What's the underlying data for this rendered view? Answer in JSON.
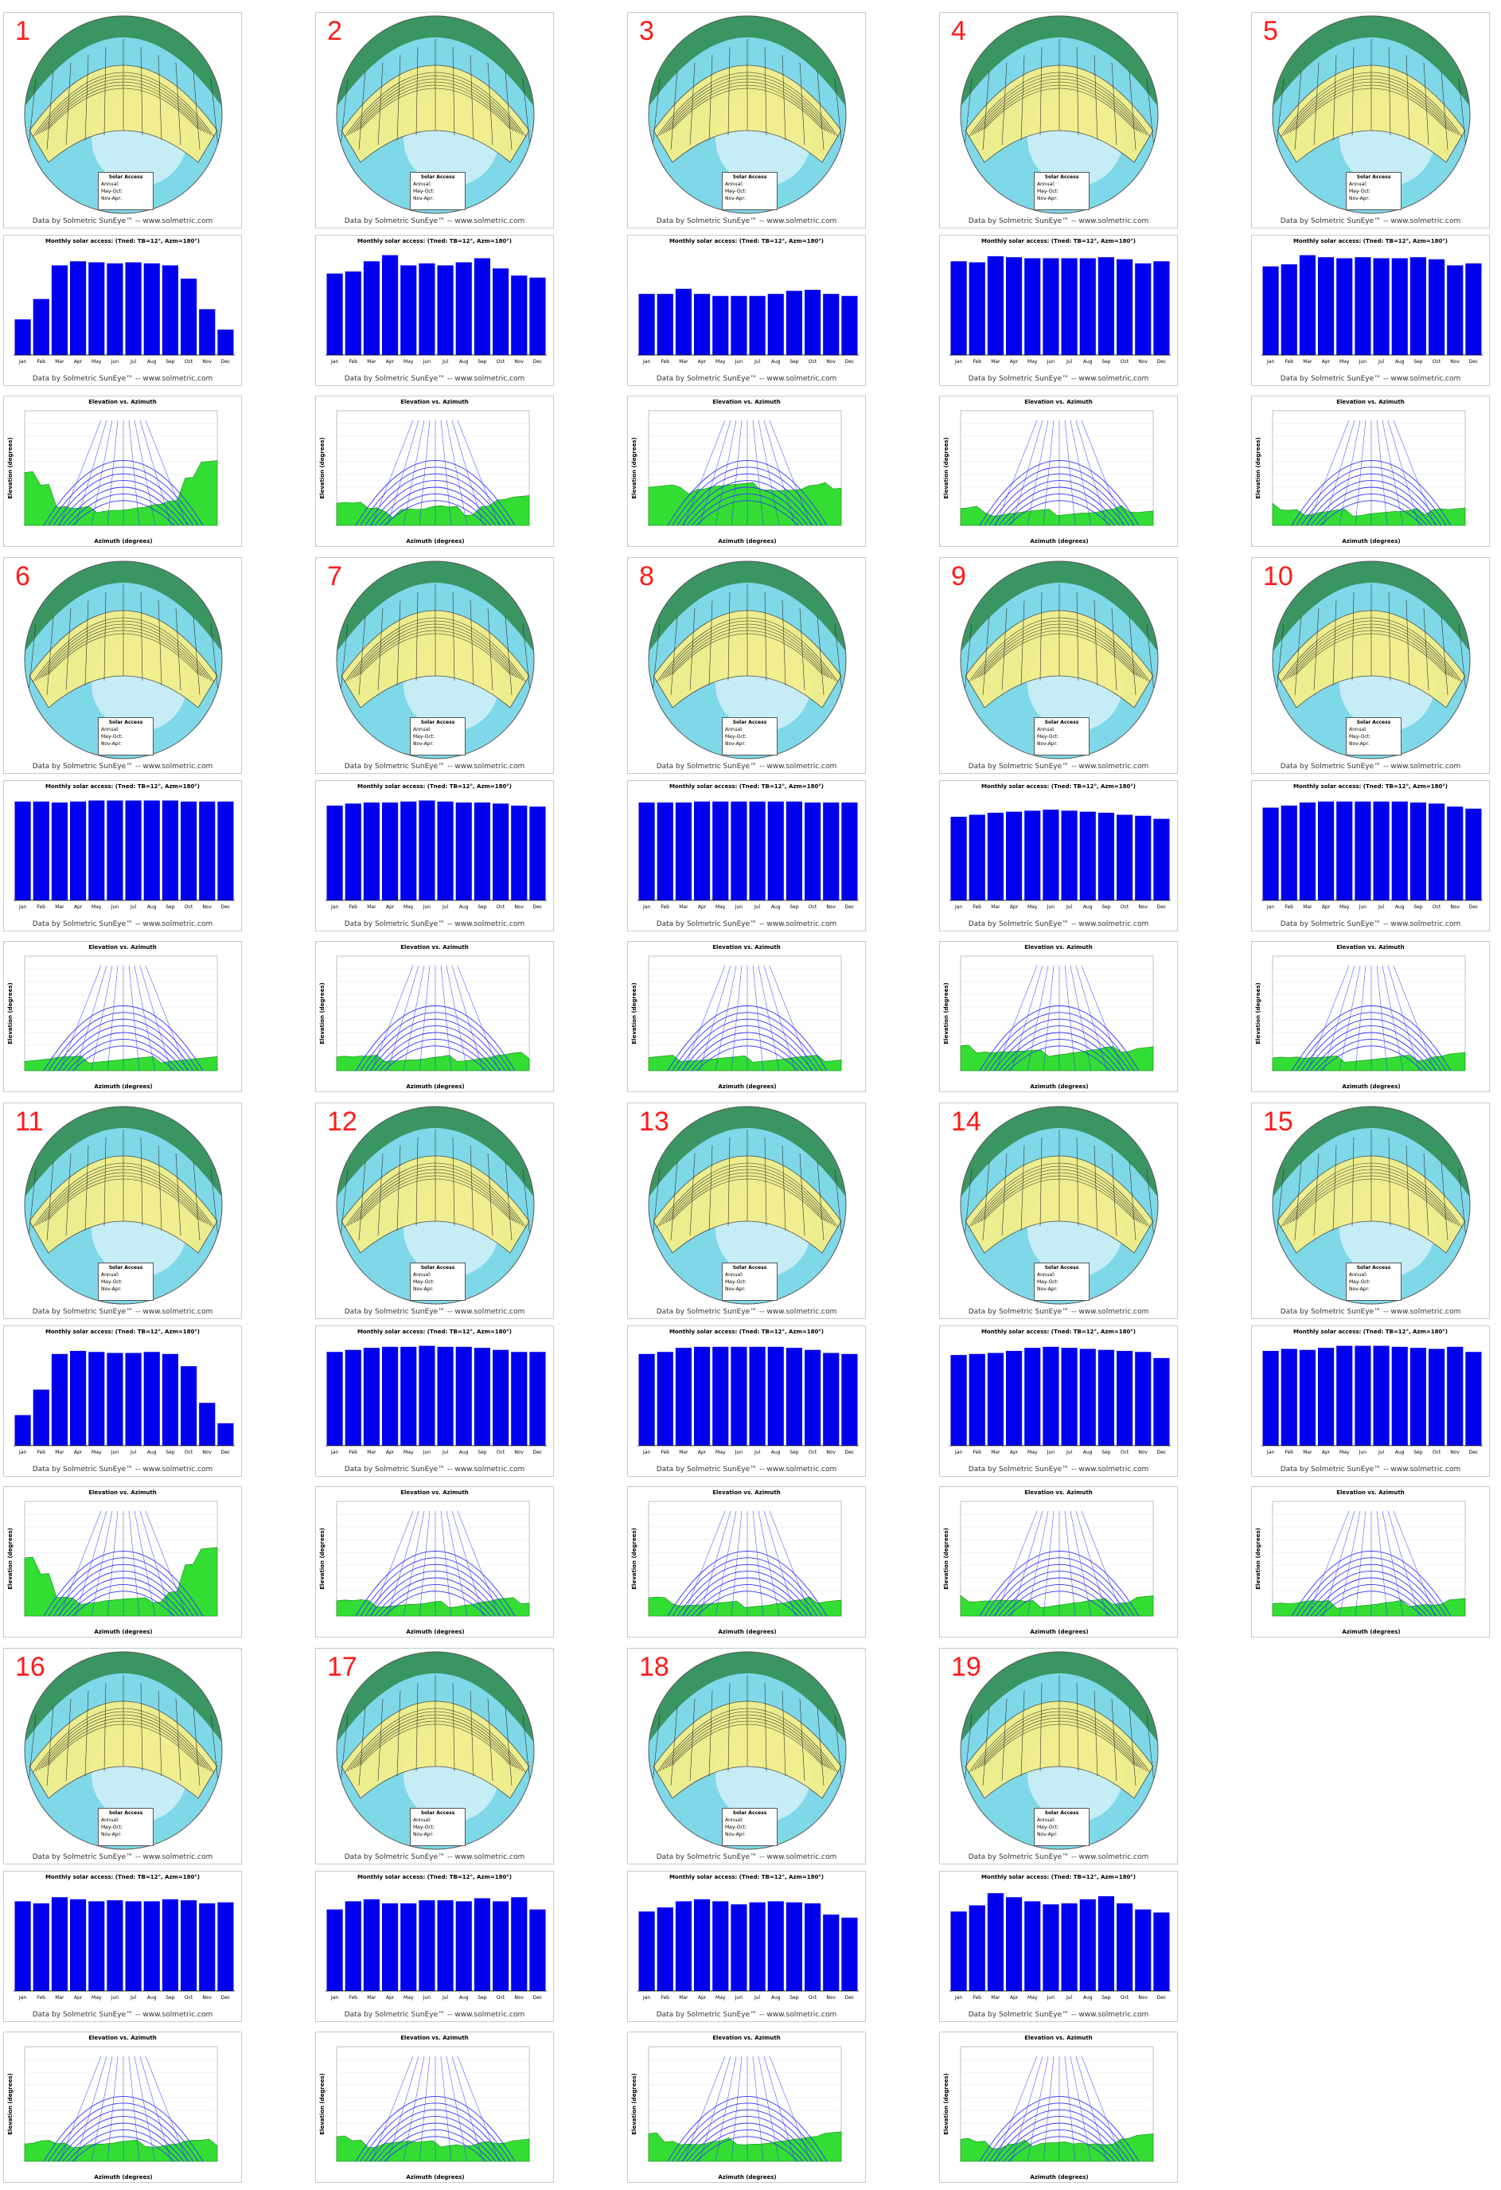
{
  "credit_text": "Data by Solmetric SunEye™ -- www.solmetric.com",
  "bar_title": "Monthly solar access: (Tned: TB=12°, Azm=180°)",
  "elev_title": "Elevation vs. Azimuth",
  "elev_xlabel": "Azimuth (degrees)",
  "elev_ylabel": "Elevation (degrees)",
  "solar_box": {
    "title": "Solar Access",
    "annual": "Annual:",
    "may_oct": "May-Oct:",
    "nov_apr": "Nov-Apr:"
  },
  "colors": {
    "number": "#ff1a1a",
    "bar": "#0000ee",
    "skyline": "#33dd33",
    "sunpath": "#3333ff",
    "sky": "#7fd8e8",
    "band": "#f3ef8a"
  },
  "chart_data": {
    "type": "bar",
    "categories": [
      "Jan",
      "Feb",
      "Mar",
      "Apr",
      "May",
      "Jun",
      "Jul",
      "Aug",
      "Sep",
      "Oct",
      "Nov",
      "Dec"
    ],
    "ylim": [
      0,
      100
    ],
    "stations": [
      {
        "id": "1",
        "values": [
          35,
          55,
          88,
          92,
          91,
          90,
          91,
          90,
          88,
          75,
          45,
          25
        ]
      },
      {
        "id": "2",
        "values": [
          80,
          82,
          92,
          98,
          88,
          90,
          88,
          91,
          95,
          85,
          78,
          76
        ]
      },
      {
        "id": "3",
        "values": [
          60,
          60,
          65,
          60,
          58,
          58,
          58,
          60,
          63,
          64,
          60,
          58
        ]
      },
      {
        "id": "4",
        "values": [
          92,
          91,
          97,
          96,
          95,
          95,
          95,
          95,
          96,
          94,
          90,
          92
        ]
      },
      {
        "id": "5",
        "values": [
          87,
          89,
          98,
          96,
          95,
          96,
          95,
          95,
          96,
          94,
          88,
          90
        ]
      },
      {
        "id": "6",
        "values": [
          97,
          97,
          96,
          97,
          98,
          98,
          98,
          98,
          98,
          97,
          97,
          97
        ]
      },
      {
        "id": "7",
        "values": [
          93,
          95,
          96,
          96,
          97,
          98,
          97,
          96,
          96,
          95,
          93,
          92
        ]
      },
      {
        "id": "8",
        "values": [
          96,
          96,
          96,
          97,
          97,
          97,
          97,
          97,
          97,
          96,
          96,
          96
        ]
      },
      {
        "id": "9",
        "values": [
          82,
          84,
          86,
          87,
          88,
          89,
          88,
          87,
          86,
          84,
          83,
          80
        ]
      },
      {
        "id": "10",
        "values": [
          91,
          93,
          96,
          97,
          97,
          97,
          97,
          97,
          96,
          95,
          92,
          90
        ]
      },
      {
        "id": "11",
        "values": [
          30,
          55,
          90,
          93,
          92,
          91,
          91,
          92,
          90,
          78,
          42,
          22
        ]
      },
      {
        "id": "12",
        "values": [
          92,
          94,
          96,
          97,
          97,
          98,
          97,
          97,
          96,
          94,
          92,
          92
        ]
      },
      {
        "id": "13",
        "values": [
          90,
          92,
          96,
          97,
          97,
          97,
          97,
          97,
          96,
          94,
          91,
          90
        ]
      },
      {
        "id": "14",
        "values": [
          89,
          90,
          91,
          93,
          96,
          97,
          96,
          95,
          94,
          93,
          92,
          86
        ]
      },
      {
        "id": "15",
        "values": [
          93,
          95,
          94,
          96,
          98,
          98,
          98,
          97,
          96,
          95,
          97,
          92
        ]
      },
      {
        "id": "16",
        "values": [
          88,
          86,
          92,
          90,
          88,
          89,
          88,
          88,
          90,
          89,
          86,
          87
        ]
      },
      {
        "id": "17",
        "values": [
          80,
          88,
          90,
          86,
          86,
          89,
          89,
          88,
          91,
          88,
          92,
          80
        ]
      },
      {
        "id": "18",
        "values": [
          78,
          82,
          88,
          90,
          88,
          85,
          87,
          88,
          87,
          86,
          75,
          72
        ]
      },
      {
        "id": "19",
        "values": [
          78,
          84,
          96,
          92,
          88,
          85,
          86,
          90,
          93,
          86,
          80,
          77
        ]
      }
    ]
  }
}
